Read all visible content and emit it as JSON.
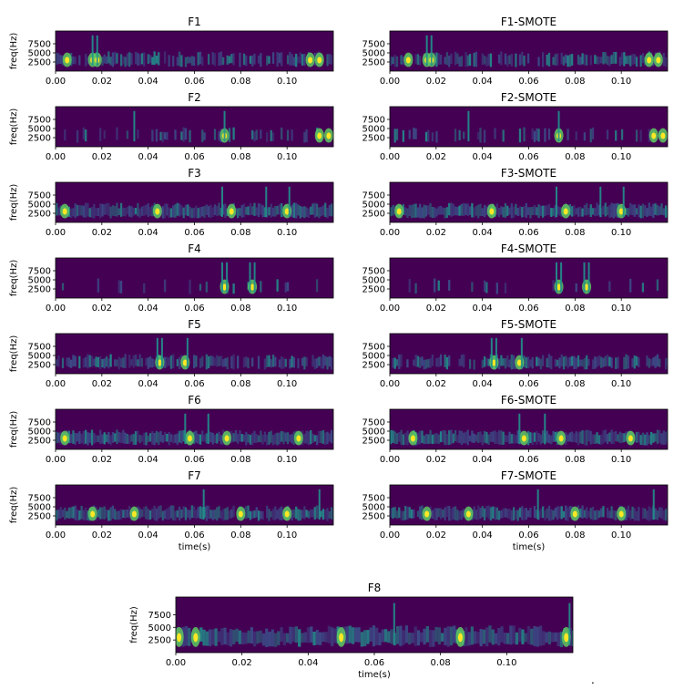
{
  "figure": {
    "dot": ".",
    "colors": {
      "background": "#440154",
      "low": "#3b528b",
      "mid": "#21918c",
      "high": "#5ec962",
      "peak": "#fde725"
    },
    "colormap": "viridis"
  },
  "chart_data": [
    {
      "type": "heatmap",
      "title": "F1",
      "ylabel": "freq(Hz)",
      "xlabel": "",
      "xlim": [
        0,
        0.12
      ],
      "ylim": [
        0,
        11000
      ],
      "x_ticks": [
        "0.00",
        "0.02",
        "0.04",
        "0.06",
        "0.08",
        "0.10"
      ],
      "y_ticks": [
        "2500",
        "5000",
        "7500"
      ],
      "bursts": [
        0.005,
        0.016,
        0.018,
        0.11,
        0.114
      ],
      "spikes": [
        0.016,
        0.018
      ],
      "density": 0.7
    },
    {
      "type": "heatmap",
      "title": "F1-SMOTE",
      "ylabel": "",
      "xlabel": "",
      "xlim": [
        0,
        0.12
      ],
      "ylim": [
        0,
        11000
      ],
      "x_ticks": [
        "0.00",
        "0.02",
        "0.04",
        "0.06",
        "0.08",
        "0.10"
      ],
      "y_ticks": [
        "2500",
        "5000",
        "7500"
      ],
      "bursts": [
        0.008,
        0.016,
        0.018,
        0.112,
        0.116
      ],
      "spikes": [
        0.016,
        0.018
      ],
      "density": 0.7
    },
    {
      "type": "heatmap",
      "title": "F2",
      "ylabel": "freq(Hz)",
      "xlabel": "",
      "xlim": [
        0,
        0.12
      ],
      "ylim": [
        0,
        11000
      ],
      "x_ticks": [
        "0.00",
        "0.02",
        "0.04",
        "0.06",
        "0.08",
        "0.10"
      ],
      "y_ticks": [
        "2500",
        "5000",
        "7500"
      ],
      "bursts": [
        0.073,
        0.114,
        0.118
      ],
      "spikes": [
        0.034,
        0.073
      ],
      "density": 0.35
    },
    {
      "type": "heatmap",
      "title": "F2-SMOTE",
      "ylabel": "",
      "xlabel": "",
      "xlim": [
        0,
        0.12
      ],
      "ylim": [
        0,
        11000
      ],
      "x_ticks": [
        "0.00",
        "0.02",
        "0.04",
        "0.06",
        "0.08",
        "0.10"
      ],
      "y_ticks": [
        "2500",
        "5000",
        "7500"
      ],
      "bursts": [
        0.073,
        0.114,
        0.118
      ],
      "spikes": [
        0.034,
        0.073
      ],
      "density": 0.35
    },
    {
      "type": "heatmap",
      "title": "F3",
      "ylabel": "freq(Hz)",
      "xlabel": "",
      "xlim": [
        0,
        0.12
      ],
      "ylim": [
        0,
        11000
      ],
      "x_ticks": [
        "0.00",
        "0.02",
        "0.04",
        "0.06",
        "0.08",
        "0.10"
      ],
      "y_ticks": [
        "2500",
        "5000",
        "7500"
      ],
      "bursts": [
        0.004,
        0.044,
        0.076,
        0.1
      ],
      "spikes": [
        0.072,
        0.091,
        0.101
      ],
      "density": 1.0
    },
    {
      "type": "heatmap",
      "title": "F3-SMOTE",
      "ylabel": "",
      "xlabel": "",
      "xlim": [
        0,
        0.12
      ],
      "ylim": [
        0,
        11000
      ],
      "x_ticks": [
        "0.00",
        "0.02",
        "0.04",
        "0.06",
        "0.08",
        "0.10"
      ],
      "y_ticks": [
        "2500",
        "5000",
        "7500"
      ],
      "bursts": [
        0.004,
        0.044,
        0.076,
        0.1
      ],
      "spikes": [
        0.072,
        0.091,
        0.101
      ],
      "density": 1.0
    },
    {
      "type": "heatmap",
      "title": "F4",
      "ylabel": "freq(Hz)",
      "xlabel": "",
      "xlim": [
        0,
        0.12
      ],
      "ylim": [
        0,
        11000
      ],
      "x_ticks": [
        "0.00",
        "0.02",
        "0.04",
        "0.06",
        "0.08",
        "0.10"
      ],
      "y_ticks": [
        "2500",
        "5000",
        "7500"
      ],
      "bursts": [
        0.073,
        0.085
      ],
      "spikes": [
        0.072,
        0.074,
        0.084,
        0.086
      ],
      "density": 0.12
    },
    {
      "type": "heatmap",
      "title": "F4-SMOTE",
      "ylabel": "",
      "xlabel": "",
      "xlim": [
        0,
        0.12
      ],
      "ylim": [
        0,
        11000
      ],
      "x_ticks": [
        "0.00",
        "0.02",
        "0.04",
        "0.06",
        "0.08",
        "0.10"
      ],
      "y_ticks": [
        "2500",
        "5000",
        "7500"
      ],
      "bursts": [
        0.073,
        0.085
      ],
      "spikes": [
        0.072,
        0.074,
        0.084,
        0.086
      ],
      "density": 0.12
    },
    {
      "type": "heatmap",
      "title": "F5",
      "ylabel": "freq(Hz)",
      "xlabel": "",
      "xlim": [
        0,
        0.12
      ],
      "ylim": [
        0,
        11000
      ],
      "x_ticks": [
        "0.00",
        "0.02",
        "0.04",
        "0.06",
        "0.08",
        "0.10"
      ],
      "y_ticks": [
        "2500",
        "5000",
        "7500"
      ],
      "bursts": [
        0.045,
        0.056
      ],
      "spikes": [
        0.044,
        0.046,
        0.057
      ],
      "density": 0.8
    },
    {
      "type": "heatmap",
      "title": "F5-SMOTE",
      "ylabel": "",
      "xlabel": "",
      "xlim": [
        0,
        0.12
      ],
      "ylim": [
        0,
        11000
      ],
      "x_ticks": [
        "0.00",
        "0.02",
        "0.04",
        "0.06",
        "0.08",
        "0.10"
      ],
      "y_ticks": [
        "2500",
        "5000",
        "7500"
      ],
      "bursts": [
        0.045,
        0.056
      ],
      "spikes": [
        0.044,
        0.046,
        0.057
      ],
      "density": 0.8
    },
    {
      "type": "heatmap",
      "title": "F6",
      "ylabel": "freq(Hz)",
      "xlabel": "",
      "xlim": [
        0,
        0.12
      ],
      "ylim": [
        0,
        11000
      ],
      "x_ticks": [
        "0.00",
        "0.02",
        "0.04",
        "0.06",
        "0.08",
        "0.10"
      ],
      "y_ticks": [
        "2500",
        "5000",
        "7500"
      ],
      "bursts": [
        0.004,
        0.058,
        0.074,
        0.105
      ],
      "spikes": [
        0.056,
        0.066
      ],
      "density": 1.0
    },
    {
      "type": "heatmap",
      "title": "F6-SMOTE",
      "ylabel": "",
      "xlabel": "",
      "xlim": [
        0,
        0.12
      ],
      "ylim": [
        0,
        11000
      ],
      "x_ticks": [
        "0.00",
        "0.02",
        "0.04",
        "0.06",
        "0.08",
        "0.10"
      ],
      "y_ticks": [
        "2500",
        "5000",
        "7500"
      ],
      "bursts": [
        0.01,
        0.058,
        0.074,
        0.104
      ],
      "spikes": [
        0.056,
        0.067
      ],
      "density": 1.0
    },
    {
      "type": "heatmap",
      "title": "F7",
      "ylabel": "freq(Hz)",
      "xlabel": "time(s)",
      "xlim": [
        0,
        0.12
      ],
      "ylim": [
        0,
        11000
      ],
      "x_ticks": [
        "0.00",
        "0.02",
        "0.04",
        "0.06",
        "0.08",
        "0.10"
      ],
      "y_ticks": [
        "2500",
        "5000",
        "7500"
      ],
      "bursts": [
        0.016,
        0.034,
        0.08,
        0.1
      ],
      "spikes": [
        0.064,
        0.114
      ],
      "density": 0.95
    },
    {
      "type": "heatmap",
      "title": "F7-SMOTE",
      "ylabel": "",
      "xlabel": "time(s)",
      "xlim": [
        0,
        0.12
      ],
      "ylim": [
        0,
        11000
      ],
      "x_ticks": [
        "0.00",
        "0.02",
        "0.04",
        "0.06",
        "0.08",
        "0.10"
      ],
      "y_ticks": [
        "2500",
        "5000",
        "7500"
      ],
      "bursts": [
        0.016,
        0.034,
        0.08,
        0.1
      ],
      "spikes": [
        0.064,
        0.114
      ],
      "density": 0.95
    },
    {
      "type": "heatmap",
      "title": "F8",
      "ylabel": "freq(Hz)",
      "xlabel": "time(s)",
      "xlim": [
        0,
        0.12
      ],
      "ylim": [
        0,
        11000
      ],
      "x_ticks": [
        "0.00",
        "0.02",
        "0.04",
        "0.06",
        "0.08",
        "0.10"
      ],
      "y_ticks": [
        "2500",
        "5000",
        "7500"
      ],
      "bursts": [
        0.001,
        0.006,
        0.05,
        0.086,
        0.118
      ],
      "spikes": [
        0.066,
        0.119
      ],
      "density": 1.0
    }
  ]
}
